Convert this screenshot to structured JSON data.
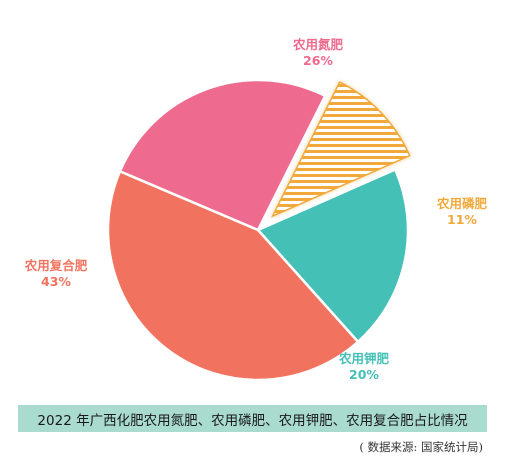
{
  "chart_data": {
    "type": "pie",
    "title": "2022 年广西化肥农用氮肥、农用磷肥、农用钾肥、农用复合肥占比情况",
    "source": "( 数据来源: 国家统计局)",
    "slices": [
      {
        "label": "农用氮肥",
        "value": 26,
        "value_label": "26%",
        "color": "#ee6a8e"
      },
      {
        "label": "农用磷肥",
        "value": 11,
        "value_label": "11%",
        "color": "#f2a93b",
        "exploded": true,
        "pattern": "horizontal-stripes"
      },
      {
        "label": "农用钾肥",
        "value": 20,
        "value_label": "20%",
        "color": "#45c0b7"
      },
      {
        "label": "农用复合肥",
        "value": 43,
        "value_label": "43%",
        "color": "#f1735f"
      }
    ],
    "legend": "none"
  }
}
